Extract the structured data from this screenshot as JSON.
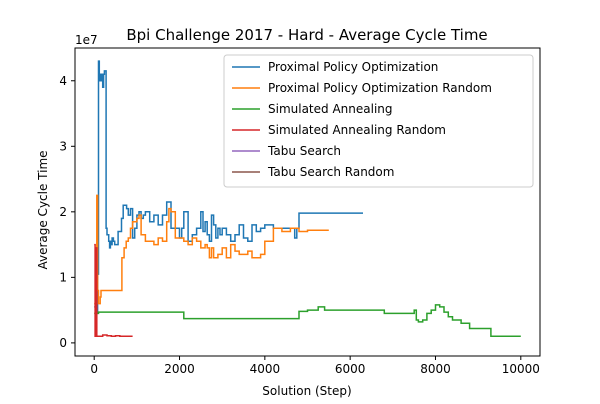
{
  "chart_data": {
    "type": "line",
    "title": "Bpi Challenge 2017 - Hard - Average Cycle Time",
    "xlabel": "Solution (Step)",
    "ylabel": "Average Cycle Time",
    "y_scale_label": "1e7",
    "xlim": [
      -450,
      10450
    ],
    "ylim": [
      -0.2,
      4.5
    ],
    "x_ticks": [
      0,
      2000,
      4000,
      6000,
      8000,
      10000
    ],
    "y_ticks": [
      0,
      1,
      2,
      3,
      4
    ],
    "legend_position": "upper-right",
    "grid": false,
    "series": [
      {
        "name": "Proximal Policy Optimization",
        "color": "#1f77b4",
        "x": [
          0,
          40,
          60,
          80,
          100,
          120,
          140,
          160,
          180,
          200,
          220,
          240,
          260,
          280,
          300,
          320,
          340,
          360,
          380,
          400,
          420,
          450,
          480,
          520,
          560,
          600,
          640,
          680,
          720,
          760,
          800,
          850,
          900,
          950,
          1000,
          1050,
          1100,
          1150,
          1200,
          1300,
          1400,
          1500,
          1600,
          1700,
          1750,
          1800,
          1900,
          2000,
          2050,
          2100,
          2200,
          2300,
          2400,
          2500,
          2550,
          2600,
          2650,
          2700,
          2750,
          2800,
          2850,
          2900,
          2950,
          3000,
          3100,
          3200,
          3300,
          3400,
          3500,
          3600,
          3700,
          3800,
          3900,
          4000,
          4200,
          4400,
          4600,
          4700,
          4750,
          4800,
          5000,
          5500,
          6000,
          6300
        ],
        "y": [
          0.55,
          0.7,
          0.45,
          1.05,
          4.3,
          4.0,
          4.1,
          4.0,
          4.1,
          3.9,
          4.1,
          4.15,
          4.15,
          1.75,
          1.65,
          1.65,
          1.55,
          1.45,
          1.55,
          1.5,
          1.6,
          1.55,
          1.5,
          1.5,
          1.7,
          1.7,
          1.9,
          2.1,
          2.1,
          2.05,
          1.95,
          2.05,
          1.6,
          1.75,
          1.95,
          2.0,
          1.9,
          1.95,
          2.0,
          1.85,
          1.95,
          1.8,
          1.95,
          2.15,
          2.15,
          1.75,
          1.75,
          1.6,
          1.75,
          2.0,
          1.55,
          1.65,
          1.75,
          2.0,
          1.7,
          1.85,
          1.65,
          1.55,
          1.95,
          1.8,
          1.6,
          1.75,
          1.65,
          1.75,
          1.65,
          1.55,
          1.65,
          1.8,
          1.6,
          1.55,
          1.8,
          1.7,
          1.75,
          1.8,
          1.75,
          1.75,
          1.75,
          1.6,
          1.75,
          1.98,
          1.98,
          1.98,
          1.98,
          1.98
        ]
      },
      {
        "name": "Proximal Policy Optimization Random",
        "color": "#ff7f0e",
        "x": [
          0,
          40,
          60,
          80,
          100,
          120,
          140,
          160,
          180,
          200,
          250,
          300,
          350,
          400,
          500,
          600,
          650,
          700,
          750,
          800,
          850,
          900,
          1000,
          1050,
          1100,
          1200,
          1300,
          1400,
          1500,
          1600,
          1700,
          1750,
          1800,
          1900,
          2000,
          2100,
          2200,
          2300,
          2400,
          2500,
          2600,
          2650,
          2700,
          2750,
          2800,
          2900,
          3000,
          3100,
          3200,
          3300,
          3400,
          3500,
          3600,
          3700,
          3800,
          3900,
          4000,
          4200,
          4400,
          4600,
          4800,
          5000,
          5200,
          5500
        ],
        "y": [
          0.6,
          0.9,
          2.25,
          0.8,
          0.6,
          0.6,
          0.7,
          0.8,
          0.8,
          0.8,
          0.8,
          0.8,
          0.8,
          0.8,
          0.8,
          0.8,
          1.3,
          1.45,
          1.55,
          1.6,
          1.75,
          1.85,
          1.9,
          1.95,
          1.65,
          1.55,
          1.55,
          1.5,
          1.6,
          1.55,
          1.85,
          2.05,
          2.0,
          1.6,
          1.6,
          1.55,
          1.5,
          1.6,
          1.55,
          1.45,
          1.5,
          1.45,
          1.3,
          1.45,
          1.3,
          1.35,
          1.45,
          1.3,
          1.5,
          1.4,
          1.35,
          1.35,
          1.4,
          1.3,
          1.3,
          1.35,
          1.55,
          1.75,
          1.7,
          1.75,
          1.7,
          1.72,
          1.72,
          1.72
        ]
      },
      {
        "name": "Simulated Annealing",
        "color": "#2ca02c",
        "x": [
          0,
          50,
          100,
          200,
          500,
          1000,
          1500,
          2000,
          2100,
          2500,
          3000,
          3500,
          4000,
          4500,
          4750,
          4800,
          5000,
          5200,
          5250,
          5400,
          5600,
          6000,
          6500,
          6800,
          7000,
          7400,
          7500,
          7550,
          7600,
          7700,
          7800,
          7900,
          8000,
          8100,
          8200,
          8300,
          8400,
          8500,
          8600,
          8700,
          8800,
          9000,
          9200,
          9300,
          9500,
          10000
        ],
        "y": [
          0.45,
          0.45,
          0.47,
          0.47,
          0.47,
          0.47,
          0.47,
          0.47,
          0.37,
          0.37,
          0.37,
          0.37,
          0.37,
          0.37,
          0.37,
          0.48,
          0.5,
          0.5,
          0.55,
          0.5,
          0.5,
          0.5,
          0.5,
          0.45,
          0.45,
          0.45,
          0.5,
          0.35,
          0.32,
          0.35,
          0.45,
          0.5,
          0.58,
          0.55,
          0.47,
          0.4,
          0.35,
          0.35,
          0.3,
          0.3,
          0.22,
          0.22,
          0.22,
          0.1,
          0.1,
          0.1
        ]
      },
      {
        "name": "Simulated Annealing Random",
        "color": "#d62728",
        "x": [
          0,
          20,
          40,
          60,
          100,
          200,
          300,
          400,
          500,
          600,
          700,
          800,
          900
        ],
        "y": [
          1.5,
          0.1,
          1.45,
          0.1,
          0.1,
          0.12,
          0.11,
          0.1,
          0.11,
          0.1,
          0.1,
          0.1,
          0.1
        ]
      },
      {
        "name": "Tabu Search",
        "color": "#9467bd",
        "x": [],
        "y": []
      },
      {
        "name": "Tabu Search Random",
        "color": "#8c564b",
        "x": [],
        "y": []
      }
    ]
  }
}
